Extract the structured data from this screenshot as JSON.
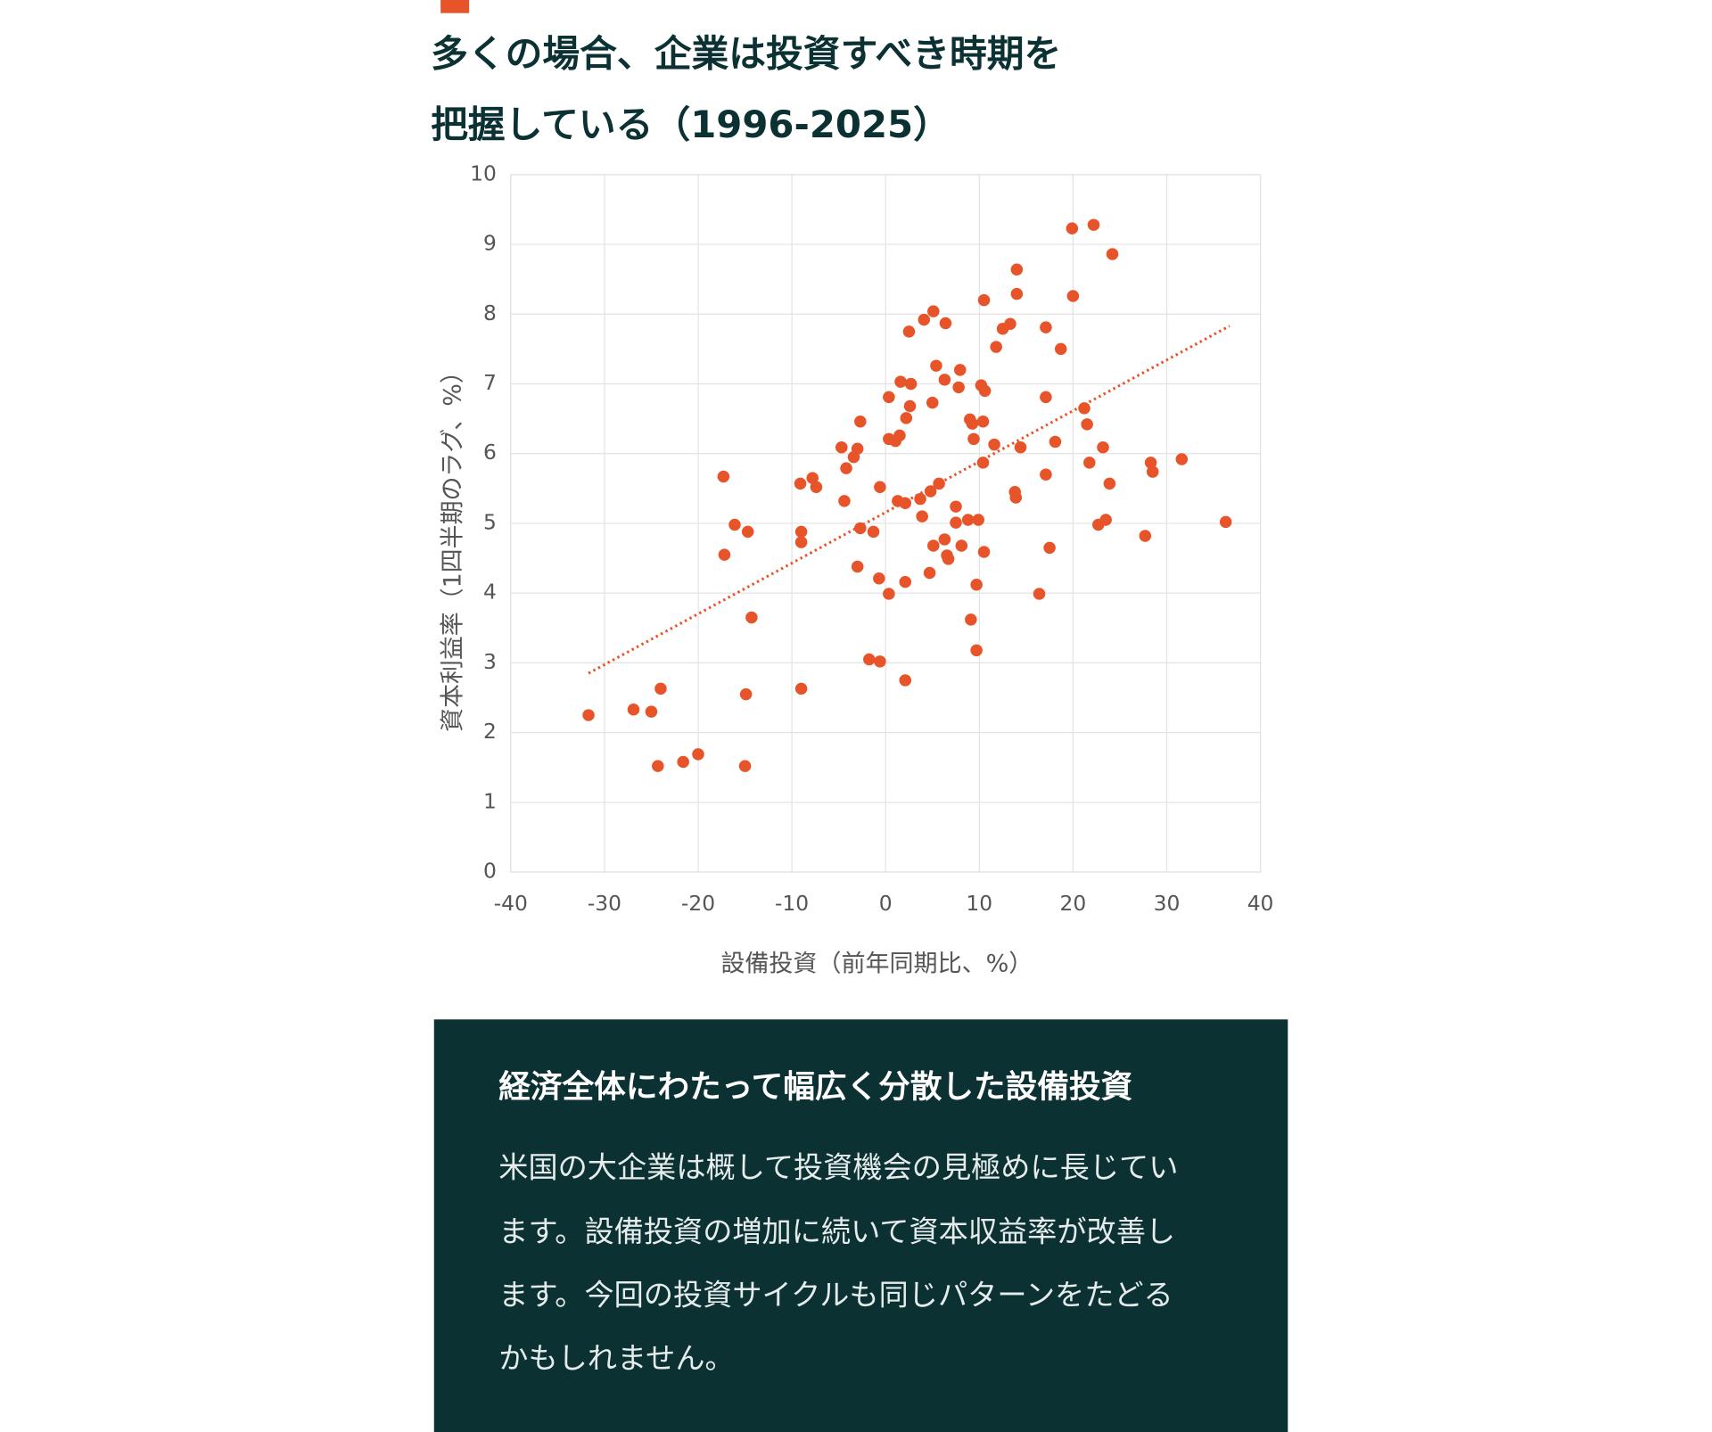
{
  "chart_data": {
    "type": "scatter",
    "title_lines": [
      "多くの場合、企業は投資すべき時期を",
      "把握している（1996-2025）"
    ],
    "xlabel": "設備投資（前年同期比、%）",
    "ylabel": "資本利益率（1四半期のラグ、%）",
    "color": "#e8542a",
    "x": [
      -31.7,
      -26.9,
      -25.0,
      -24.0,
      -24.3,
      -21.6,
      -20.0,
      -15.0,
      -14.9,
      -14.3,
      -17.3,
      -16.1,
      -17.2,
      -14.7,
      -9.0,
      -9.1,
      -7.8,
      -7.4,
      -9.0,
      -9.0,
      -4.7,
      -3.0,
      -3.4,
      -4.2,
      -4.4,
      -2.7,
      -2.7,
      -1.3,
      -3.0,
      -1.75,
      -0.6,
      -0.7,
      0.35,
      -0.6,
      0.35,
      0.35,
      1.05,
      1.5,
      1.6,
      2.7,
      2.2,
      2.6,
      1.3,
      2.1,
      2.5,
      4.1,
      5.1,
      6.4,
      5.4,
      6.3,
      7.95,
      7.8,
      5.0,
      2.1,
      2.1,
      4.7,
      3.9,
      3.7,
      4.8,
      5.7,
      5.1,
      6.3,
      6.55,
      6.7,
      8.1,
      7.5,
      7.5,
      8.8,
      9.9,
      10.5,
      9.7,
      9.1,
      9.7,
      10.5,
      9.25,
      9.0,
      9.4,
      10.4,
      10.2,
      10.6,
      10.4,
      11.6,
      11.8,
      12.5,
      13.3,
      14.0,
      14.0,
      13.8,
      13.9,
      14.4,
      16.4,
      17.1,
      17.1,
      17.1,
      17.5,
      18.1,
      18.7,
      19.9,
      20.0,
      22.2,
      24.2,
      21.2,
      21.5,
      21.75,
      23.2,
      23.9,
      22.7,
      23.5,
      27.7,
      28.3,
      28.5,
      31.6,
      36.3
    ],
    "values": [
      2.25,
      2.33,
      2.3,
      2.63,
      1.52,
      1.58,
      1.69,
      1.52,
      2.55,
      3.65,
      5.67,
      4.98,
      4.55,
      4.88,
      2.63,
      5.57,
      5.65,
      5.52,
      4.88,
      4.73,
      6.09,
      6.07,
      5.95,
      5.79,
      5.32,
      6.46,
      4.93,
      4.88,
      4.38,
      3.05,
      3.02,
      4.21,
      3.99,
      5.52,
      6.81,
      6.21,
      6.18,
      6.26,
      7.03,
      7.0,
      6.51,
      6.68,
      5.32,
      5.29,
      7.75,
      7.92,
      8.04,
      7.87,
      7.26,
      7.06,
      7.2,
      6.95,
      6.73,
      2.75,
      4.16,
      4.29,
      5.1,
      5.35,
      5.46,
      5.57,
      4.68,
      4.77,
      4.54,
      4.49,
      4.68,
      5.24,
      5.01,
      5.05,
      5.05,
      4.59,
      4.12,
      3.62,
      3.18,
      8.2,
      6.43,
      6.49,
      6.21,
      6.46,
      6.98,
      6.9,
      5.87,
      6.13,
      7.53,
      7.79,
      7.86,
      8.64,
      8.29,
      5.45,
      5.37,
      6.09,
      3.99,
      7.81,
      6.81,
      5.7,
      4.65,
      6.17,
      7.5,
      9.23,
      8.26,
      9.28,
      8.86,
      6.65,
      6.42,
      5.87,
      6.09,
      5.57,
      4.98,
      5.05,
      4.82,
      5.87,
      5.74,
      5.92,
      5.02
    ],
    "trendline": {
      "x": [
        -31.7,
        36.7
      ],
      "y": [
        2.85,
        7.83
      ]
    },
    "xlim": [
      -40,
      40
    ],
    "xticks": [
      -40,
      -30,
      -20,
      -10,
      0,
      10,
      20,
      30,
      40
    ],
    "ylim": [
      0,
      10
    ],
    "yticks": [
      0,
      1,
      2,
      3,
      4,
      5,
      6,
      7,
      8,
      9,
      10
    ],
    "grid": true
  },
  "description": {
    "title": "経済全体にわたって幅広く分散した設備投資",
    "lines": [
      "米国の大企業は概して投資機会の見極めに長じてい",
      "ます。設備投資の増加に続いて資本収益率が改善し",
      "ます。今回の投資サイクルも同じパターンをたどる",
      "かもしれません。"
    ]
  }
}
